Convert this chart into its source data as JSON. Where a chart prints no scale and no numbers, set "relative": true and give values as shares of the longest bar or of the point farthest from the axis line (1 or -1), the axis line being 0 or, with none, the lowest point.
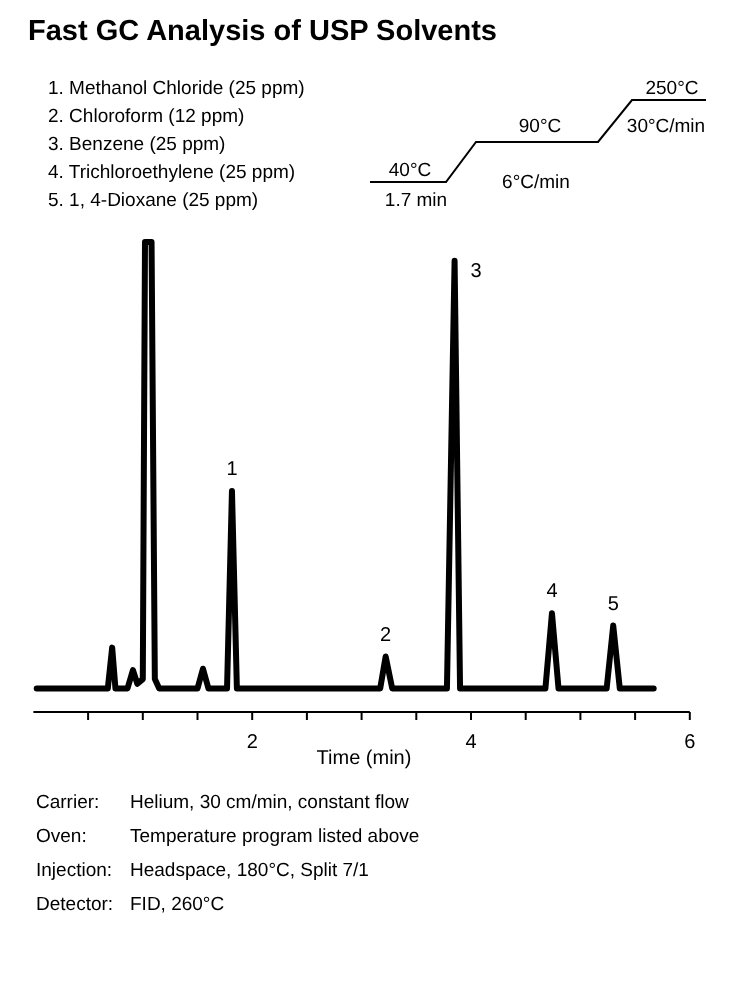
{
  "chart_data": {
    "type": "line",
    "title": "Fast GC Analysis of USP Solvents",
    "xlabel": "Time (min)",
    "relative": true,
    "grid": false,
    "marker": "none",
    "line_style": "solid",
    "xlim": [
      0,
      6
    ],
    "xticks": [
      {
        "value": 0.5,
        "label": null
      },
      {
        "value": 1,
        "label": null
      },
      {
        "value": 1.5,
        "label": null
      },
      2,
      {
        "value": 2.5,
        "label": null
      },
      {
        "value": 3,
        "label": null
      },
      {
        "value": 3.5,
        "label": null
      },
      4,
      {
        "value": 4.5,
        "label": null
      },
      {
        "value": 5,
        "label": null
      },
      {
        "value": 5.5,
        "label": null
      },
      6
    ],
    "series": [
      {
        "color": "#000000",
        "x": [
          0.03,
          0.68,
          0.72,
          0.75,
          0.86,
          0.91,
          0.95,
          1.0,
          1.02,
          1.08,
          1.11,
          1.15,
          1.5,
          1.55,
          1.6,
          1.77,
          1.815,
          1.86,
          3.17,
          3.22,
          3.28,
          3.78,
          3.85,
          3.9,
          4.68,
          4.74,
          4.8,
          5.24,
          5.3,
          5.36,
          5.67
        ],
        "values": [
          0.05,
          0.05,
          0.137,
          0.05,
          0.05,
          0.089,
          0.06,
          0.07,
          1,
          1,
          0.07,
          0.05,
          0.05,
          0.092,
          0.05,
          0.05,
          0.47,
          0.05,
          0.05,
          0.118,
          0.05,
          0.05,
          0.96,
          0.05,
          0.05,
          0.21,
          0.05,
          0.05,
          0.184,
          0.05,
          0.05
        ]
      }
    ],
    "annotations": [
      "1. Methanol Chloride (25 ppm)",
      "2. Chloroform (12 ppm)",
      "3. Benzene (25 ppm)",
      "4. Trichloroethylene (25 ppm)",
      "5. 1, 4-Dioxane (25 ppm)",
      "40°C",
      "1.7 min",
      "90°C",
      "6°C/min",
      "250°C",
      "30°C/min",
      {
        "text": "1",
        "x": 1.815,
        "y": 0.47
      },
      {
        "text": "2",
        "x": 3.22,
        "y": 0.118
      },
      {
        "text": "3",
        "x": 3.85,
        "y": 0.96
      },
      {
        "text": "4",
        "x": 4.74,
        "y": 0.21
      },
      {
        "text": "5",
        "x": 5.3,
        "y": 0.184
      },
      "Carrier:",
      "Helium, 30 cm/min, constant flow",
      "Oven:",
      "Temperature program listed above",
      "Injection:",
      "Headspace, 180°C, Split 7/1",
      "Detector:",
      "FID, 260°C"
    ]
  }
}
